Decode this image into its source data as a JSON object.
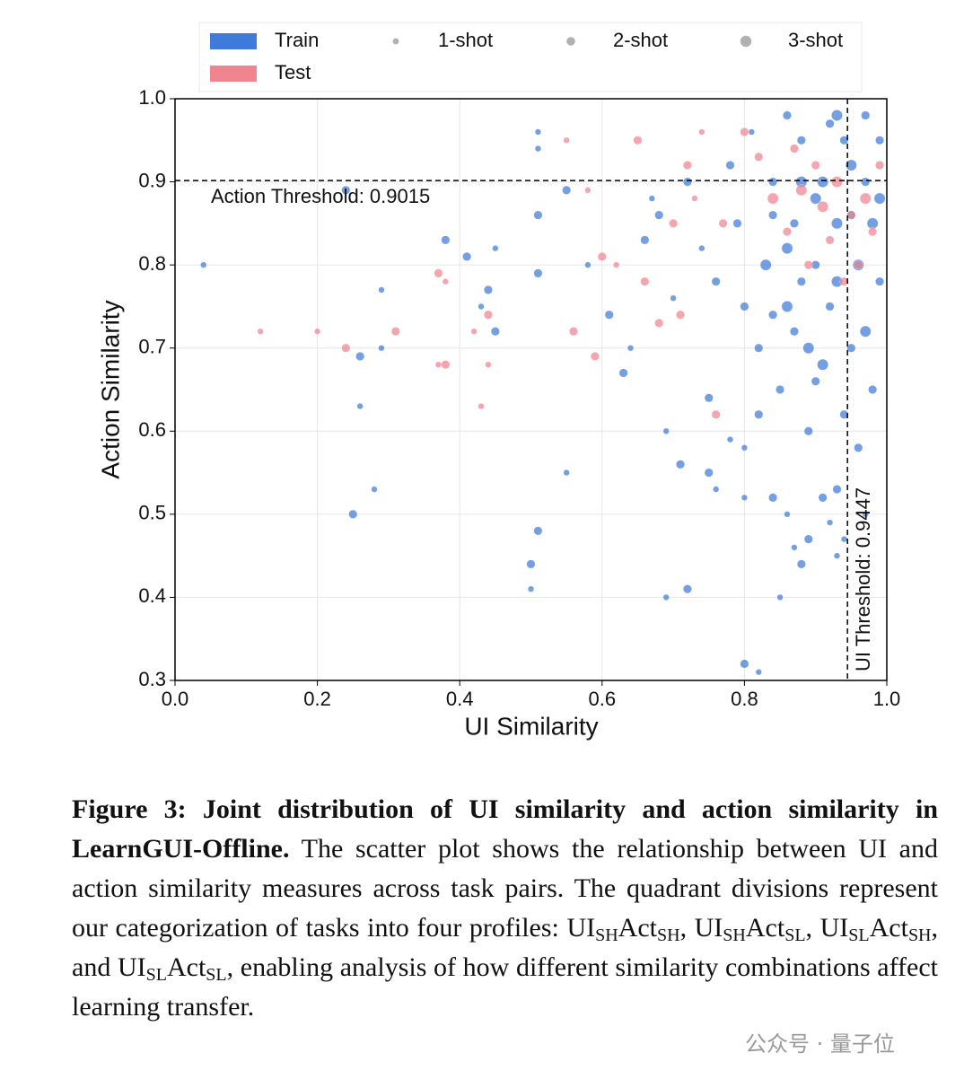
{
  "chart_data": {
    "type": "scatter",
    "xlabel": "UI Similarity",
    "ylabel": "Action Similarity",
    "xlim": [
      0,
      1
    ],
    "ylim": [
      0.3,
      1
    ],
    "xticks": [
      {
        "value": 0,
        "label": "0.0"
      },
      0.2,
      0.4,
      0.6,
      0.8,
      {
        "value": 1,
        "label": "1.0"
      }
    ],
    "yticks": [
      0.3,
      0.4,
      0.5,
      0.6,
      0.7,
      0.8,
      0.9,
      {
        "value": 1,
        "label": "1.0"
      }
    ],
    "grid": true,
    "hlines": [
      {
        "value": 0.9015,
        "label": "Action Threshold: 0.9015"
      }
    ],
    "vlines": [
      {
        "value": 0.9447,
        "label": "UI Threshold: 0.9447"
      }
    ],
    "size_legend": [
      {
        "label": "1-shot",
        "size": 1
      },
      {
        "label": "2-shot",
        "size": 2
      },
      {
        "label": "3-shot",
        "size": 3
      }
    ],
    "size_legend_color": "#b0b0b0",
    "series": [
      {
        "name": "Train",
        "color": "#3f7bd9",
        "x": [
          0.04,
          0.24,
          0.29,
          0.26,
          0.26,
          0.28,
          0.25,
          0.29,
          0.38,
          0.41,
          0.44,
          0.45,
          0.43,
          0.45,
          0.51,
          0.51,
          0.51,
          0.51,
          0.5,
          0.51,
          0.5,
          0.55,
          0.55,
          0.58,
          0.61,
          0.63,
          0.64,
          0.66,
          0.67,
          0.69,
          0.71,
          0.69,
          0.72,
          0.75,
          0.75,
          0.76,
          0.78,
          0.8,
          0.8,
          0.8,
          0.82,
          0.84,
          0.86,
          0.87,
          0.88,
          0.89,
          0.91,
          0.92,
          0.93,
          0.93,
          0.94,
          0.96,
          0.97,
          0.85,
          0.79,
          0.8,
          0.82,
          0.83,
          0.84,
          0.85,
          0.86,
          0.87,
          0.88,
          0.89,
          0.9,
          0.91,
          0.92,
          0.93,
          0.94,
          0.95,
          0.96,
          0.97,
          0.98,
          0.99,
          0.95,
          0.92,
          0.9,
          0.88,
          0.86,
          0.84,
          0.82,
          0.9,
          0.94,
          0.97,
          0.99,
          0.98,
          0.76,
          0.74,
          0.72,
          0.7,
          0.68,
          0.78,
          0.81,
          0.86,
          0.93,
          0.97,
          0.89,
          0.91,
          0.87,
          0.93,
          0.95,
          0.99,
          0.84,
          0.88
        ],
        "values": [
          0.8,
          0.89,
          0.77,
          0.69,
          0.63,
          0.53,
          0.5,
          0.7,
          0.83,
          0.81,
          0.77,
          0.82,
          0.75,
          0.72,
          0.96,
          0.94,
          0.86,
          0.79,
          0.44,
          0.48,
          0.41,
          0.55,
          0.89,
          0.8,
          0.74,
          0.67,
          0.7,
          0.83,
          0.88,
          0.6,
          0.56,
          0.4,
          0.41,
          0.64,
          0.55,
          0.53,
          0.59,
          0.58,
          0.52,
          0.32,
          0.31,
          0.52,
          0.5,
          0.46,
          0.44,
          0.47,
          0.52,
          0.49,
          0.45,
          0.53,
          0.47,
          0.58,
          0.5,
          0.4,
          0.85,
          0.75,
          0.7,
          0.8,
          0.9,
          0.65,
          0.75,
          0.85,
          0.95,
          0.7,
          0.8,
          0.9,
          0.75,
          0.85,
          0.95,
          0.7,
          0.8,
          0.9,
          0.85,
          0.95,
          0.92,
          0.97,
          0.88,
          0.78,
          0.82,
          0.74,
          0.62,
          0.66,
          0.62,
          0.72,
          0.78,
          0.65,
          0.78,
          0.82,
          0.9,
          0.76,
          0.86,
          0.92,
          0.96,
          0.98,
          0.98,
          0.98,
          0.6,
          0.68,
          0.72,
          0.78,
          0.86,
          0.88,
          0.86,
          0.9
        ],
        "sizes": [
          1,
          2,
          1,
          2,
          1,
          1,
          2,
          1,
          2,
          2,
          2,
          1,
          1,
          2,
          1,
          1,
          2,
          2,
          2,
          2,
          1,
          1,
          2,
          1,
          2,
          2,
          1,
          2,
          1,
          1,
          2,
          1,
          2,
          2,
          2,
          1,
          1,
          1,
          1,
          2,
          1,
          2,
          1,
          1,
          2,
          2,
          2,
          1,
          1,
          2,
          1,
          2,
          1,
          1,
          2,
          2,
          2,
          3,
          2,
          2,
          3,
          2,
          2,
          3,
          2,
          3,
          2,
          3,
          2,
          2,
          3,
          2,
          3,
          2,
          3,
          2,
          3,
          2,
          3,
          2,
          2,
          2,
          2,
          3,
          2,
          2,
          2,
          1,
          2,
          1,
          2,
          2,
          1,
          2,
          3,
          2,
          2,
          3,
          2,
          3,
          2,
          3,
          2,
          3
        ]
      },
      {
        "name": "Test",
        "color": "#f0848f",
        "x": [
          0.12,
          0.2,
          0.24,
          0.31,
          0.37,
          0.38,
          0.37,
          0.38,
          0.44,
          0.42,
          0.43,
          0.44,
          0.55,
          0.58,
          0.56,
          0.59,
          0.6,
          0.62,
          0.65,
          0.66,
          0.68,
          0.7,
          0.71,
          0.72,
          0.73,
          0.74,
          0.76,
          0.77,
          0.8,
          0.82,
          0.84,
          0.86,
          0.88,
          0.9,
          0.91,
          0.92,
          0.93,
          0.95,
          0.96,
          0.97,
          0.98,
          0.89,
          0.87,
          0.99,
          0.94
        ],
        "values": [
          0.72,
          0.72,
          0.7,
          0.72,
          0.68,
          0.68,
          0.79,
          0.78,
          0.74,
          0.72,
          0.63,
          0.68,
          0.95,
          0.89,
          0.72,
          0.69,
          0.81,
          0.8,
          0.95,
          0.78,
          0.73,
          0.85,
          0.74,
          0.92,
          0.88,
          0.96,
          0.62,
          0.85,
          0.96,
          0.93,
          0.88,
          0.84,
          0.89,
          0.92,
          0.87,
          0.83,
          0.9,
          0.86,
          0.8,
          0.88,
          0.84,
          0.8,
          0.94,
          0.92,
          0.78
        ],
        "sizes": [
          1,
          1,
          2,
          2,
          1,
          2,
          2,
          1,
          2,
          1,
          1,
          1,
          1,
          1,
          2,
          2,
          2,
          1,
          2,
          2,
          2,
          2,
          2,
          2,
          1,
          1,
          2,
          2,
          2,
          2,
          3,
          2,
          3,
          2,
          3,
          2,
          3,
          2,
          2,
          3,
          2,
          2,
          2,
          2,
          2
        ]
      }
    ]
  },
  "caption": [
    {
      "text": "Figure 3: Joint distribution of UI similarity and action similarity in LearnGUI-Offline.",
      "bold": true
    },
    {
      "text": " The scatter plot shows the relationship between UI and action similarity measures across task pairs. The quadrant divisions represent our categorization of tasks into four profiles: "
    },
    {
      "text": "UI"
    },
    {
      "text": "SH",
      "sub": true
    },
    {
      "text": "Act"
    },
    {
      "text": "SH",
      "sub": true
    },
    {
      "text": ", "
    },
    {
      "text": "UI"
    },
    {
      "text": "SH",
      "sub": true
    },
    {
      "text": "Act"
    },
    {
      "text": "SL",
      "sub": true
    },
    {
      "text": ", "
    },
    {
      "text": "UI"
    },
    {
      "text": "SL",
      "sub": true
    },
    {
      "text": "Act"
    },
    {
      "text": "SH",
      "sub": true
    },
    {
      "text": ", and "
    },
    {
      "text": "UI"
    },
    {
      "text": "SL",
      "sub": true
    },
    {
      "text": "Act"
    },
    {
      "text": "SL",
      "sub": true
    },
    {
      "text": ", enabling analysis of how different similarity combinations affect learning transfer."
    }
  ],
  "watermark": "公众号 · 量子位"
}
